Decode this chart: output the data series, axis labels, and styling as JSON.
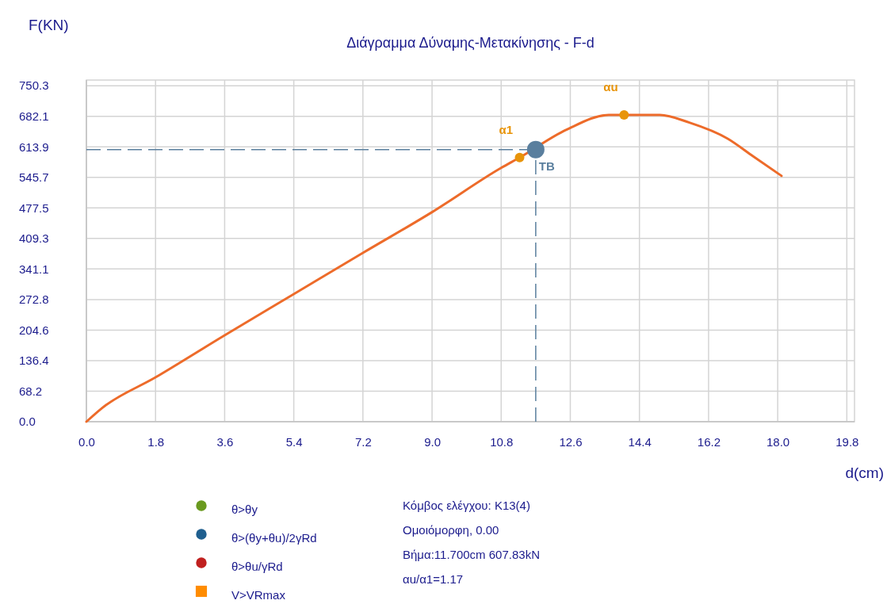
{
  "chart_data": {
    "type": "line",
    "title": "Διάγραμμα Δύναμης-Μετακίνησης - F-d",
    "xlabel": "d(cm)",
    "ylabel": "F(KN)",
    "xlim": [
      0,
      20
    ],
    "ylim": [
      0,
      763
    ],
    "xticks": [
      {
        "value": 0,
        "label": "0.0"
      },
      {
        "value": 1.8,
        "label": "1.8"
      },
      {
        "value": 3.6,
        "label": "3.6"
      },
      {
        "value": 5.4,
        "label": "5.4"
      },
      {
        "value": 7.2,
        "label": "7.2"
      },
      {
        "value": 9.0,
        "label": "9.0"
      },
      {
        "value": 10.8,
        "label": "10.8"
      },
      {
        "value": 12.6,
        "label": "12.6"
      },
      {
        "value": 14.4,
        "label": "14.4"
      },
      {
        "value": 16.2,
        "label": "16.2"
      },
      {
        "value": 18.0,
        "label": "18.0"
      },
      {
        "value": 19.8,
        "label": "19.8"
      }
    ],
    "yticks": [
      {
        "value": 0,
        "label": "0.0"
      },
      68.2,
      136.4,
      272.8,
      204.6,
      341.1,
      409.3,
      477.5,
      545.7,
      613.9,
      682.1,
      750.3
    ],
    "grid": true,
    "legend": "bottom",
    "series": [
      {
        "color": "#ed6b2a",
        "x": [
          0,
          0.4,
          1.8,
          3.6,
          5.4,
          7.2,
          9.0,
          10.8,
          11.28,
          12.5,
          13.6,
          14.0,
          14.93,
          15.7,
          16.7,
          17.37,
          18.1
        ],
        "values": [
          0,
          30,
          99,
          193,
          285,
          377,
          468,
          567,
          590,
          652,
          685,
          685,
          685,
          668,
          632,
          592,
          549
        ],
        "marker": "none",
        "line_style": "solid"
      },
      {
        "type": "scatter",
        "color": "#e8940a",
        "x": [
          11.28,
          14.0
        ],
        "values": [
          590,
          685
        ],
        "marker": "circle"
      },
      {
        "type": "scatter",
        "color": "#5a7f9e",
        "x": [
          11.7
        ],
        "values": [
          607.83
        ],
        "marker": "circle"
      },
      {
        "type": "scatter",
        "name": "θ>θy",
        "color": "#6a9a1f",
        "marker": "circle"
      },
      {
        "type": "scatter",
        "name": "θ>(θy+θu)/2γRd",
        "color": "#1f5f8f",
        "marker": "circle"
      },
      {
        "type": "scatter",
        "name": "θ>θu/γRd",
        "color": "#c0201f",
        "marker": "circle"
      },
      {
        "type": "scatter",
        "name": "V>VRmax",
        "color": "#ff8c00",
        "marker": "square"
      }
    ],
    "ref_lines": [
      {
        "axis": "y",
        "value": 607.83,
        "color": "#5a7f9e",
        "line_style": "dashed"
      },
      {
        "axis": "x",
        "value": 11.7,
        "color": "#5a7f9e",
        "line_style": "dashed"
      }
    ],
    "annotations": [
      {
        "text": "α1",
        "x": 11.28,
        "y": 590
      },
      {
        "text": "αu",
        "x": 14.0,
        "y": 685
      },
      {
        "text": "TB",
        "x": 11.7,
        "y": 607.83
      },
      "Κόμβος ελέγχου: K13(4)",
      "Ομοιόμορφη, 0.00",
      "Βήμα:11.700cm 607.83kN",
      "αu/α1=1.17"
    ]
  }
}
